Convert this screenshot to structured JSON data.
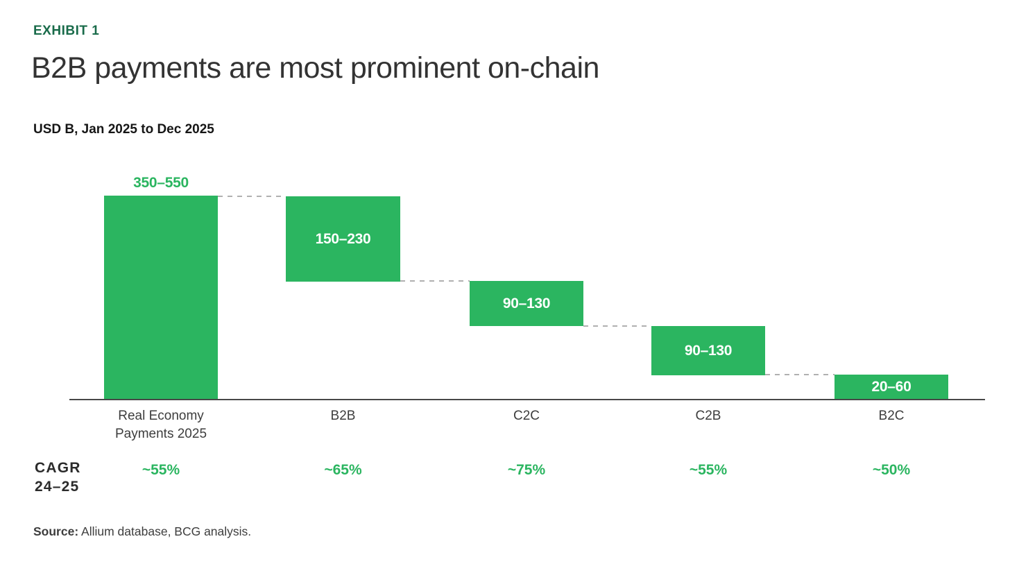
{
  "page": {
    "exhibit_label": "EXHIBIT 1",
    "title": "B2B payments are most prominent on-chain",
    "subtitle": "USD B, Jan 2025 to Dec 2025",
    "cagr_row_label_line1": "CAGR",
    "cagr_row_label_line2": "24–25",
    "source_prefix": "Source:",
    "source_text": " Allium database, BCG analysis."
  },
  "colors": {
    "bar_green": "#2bb560",
    "exhibit_green": "#196b4a",
    "title_text": "#333333",
    "axis_gray": "#474747",
    "dash_gray": "#b0b0b0"
  },
  "chart_data": {
    "type": "bar",
    "variant": "waterfall",
    "title": "B2B payments are most prominent on-chain",
    "units_label": "USD B, Jan 2025 to Dec 2025",
    "categories": [
      "Real Economy Payments 2025",
      "B2B",
      "C2C",
      "C2B",
      "B2C"
    ],
    "value_labels": [
      "350–550",
      "150–230",
      "90–130",
      "90–130",
      "20–60"
    ],
    "ranges_usd_b": [
      [
        350,
        550
      ],
      [
        150,
        230
      ],
      [
        90,
        130
      ],
      [
        90,
        130
      ],
      [
        20,
        60
      ]
    ],
    "cagr_24_25": [
      "~55%",
      "~65%",
      "~75%",
      "~55%",
      "~50%"
    ],
    "first_bar_is_total": true,
    "value_label_positions": [
      "above",
      "inside",
      "inside",
      "inside",
      "inside"
    ],
    "grid": false,
    "legend": false
  }
}
